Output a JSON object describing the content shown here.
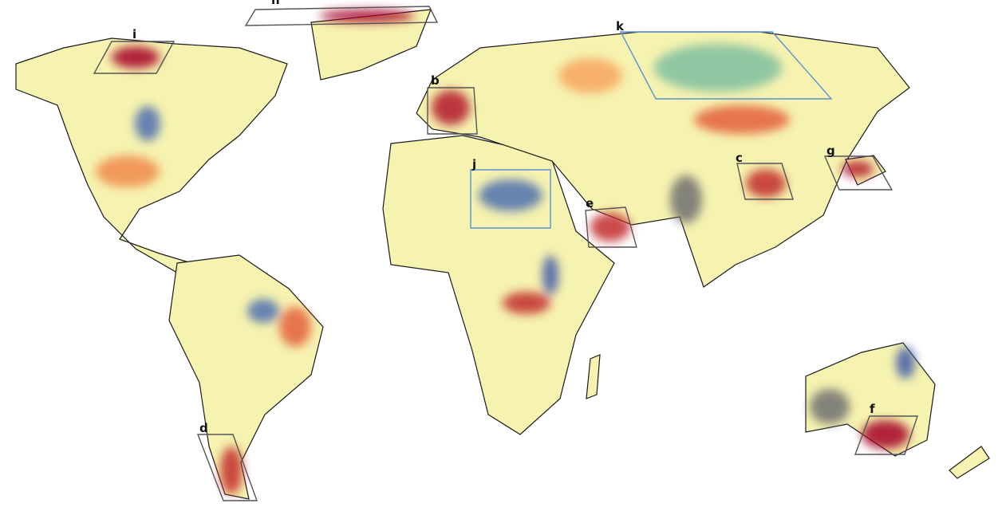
{
  "regions": [
    {
      "label": "h"
    },
    {
      "label": "i"
    },
    {
      "label": "b"
    },
    {
      "label": "k"
    },
    {
      "label": "c"
    },
    {
      "label": "g"
    },
    {
      "label": "j"
    },
    {
      "label": "e"
    },
    {
      "label": "f"
    },
    {
      "label": "d"
    }
  ]
}
